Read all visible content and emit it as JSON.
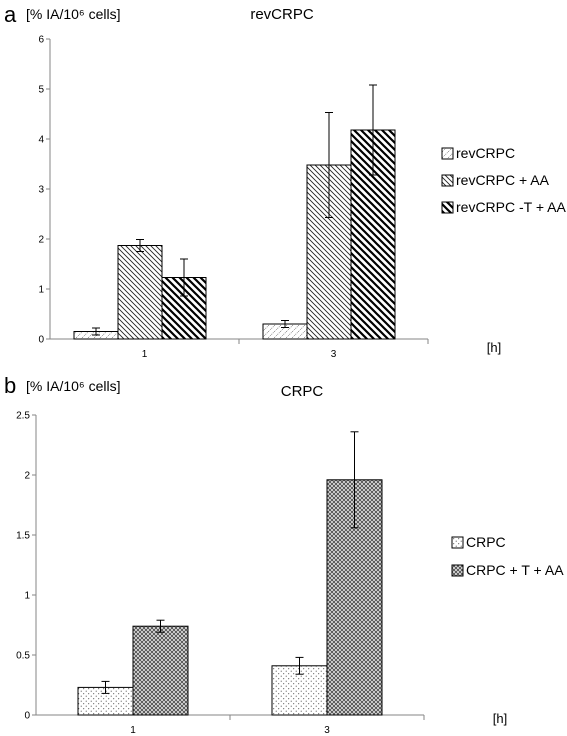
{
  "chart_data": [
    {
      "type": "bar",
      "panel": "a",
      "title": "revCRPC",
      "ylabel": "[% IA/10⁶ cells]",
      "xlabel": "[h]",
      "categories": [
        "1",
        "3"
      ],
      "ylim": [
        0,
        6
      ],
      "yticks": [
        "0",
        "1",
        "2",
        "3",
        "4",
        "5",
        "6"
      ],
      "series": [
        {
          "name": "revCRPC",
          "pattern": "dots-diag",
          "values": [
            0.15,
            0.3
          ],
          "errors": [
            0.07,
            0.07
          ]
        },
        {
          "name": "revCRPC + AA",
          "pattern": "diag-left",
          "values": [
            1.87,
            3.48
          ],
          "errors": [
            0.12,
            1.05
          ]
        },
        {
          "name": "revCRPC -T + AA",
          "pattern": "diag-thick",
          "values": [
            1.23,
            4.18
          ],
          "errors": [
            0.37,
            0.9
          ]
        }
      ],
      "legend": "right",
      "grid": false
    },
    {
      "type": "bar",
      "panel": "b",
      "title": "CRPC",
      "ylabel": "[% IA/10⁶ cells]",
      "xlabel": "[h]",
      "categories": [
        "1",
        "3"
      ],
      "ylim": [
        0,
        2.5
      ],
      "yticks": [
        "0",
        "0.5",
        "1",
        "1.5",
        "2",
        "2.5"
      ],
      "series": [
        {
          "name": "CRPC",
          "pattern": "dots",
          "values": [
            0.23,
            0.41
          ],
          "errors": [
            0.05,
            0.07
          ]
        },
        {
          "name": "CRPC + T + AA",
          "pattern": "crosshatch",
          "values": [
            0.74,
            1.96
          ],
          "errors": [
            0.05,
            0.4
          ]
        }
      ],
      "legend": "right",
      "grid": false
    }
  ]
}
